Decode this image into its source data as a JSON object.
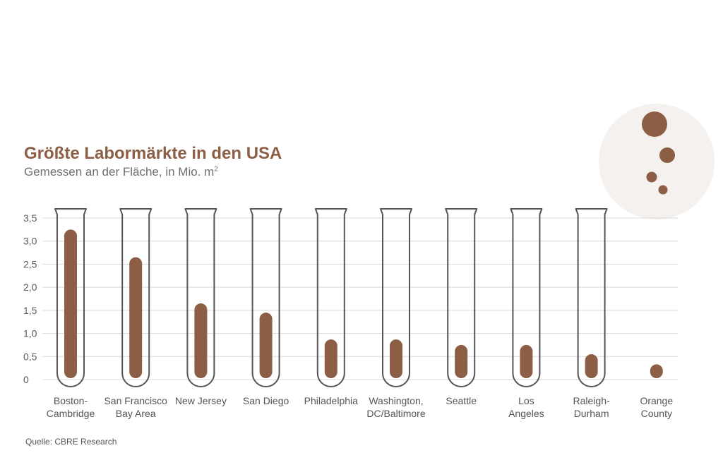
{
  "header": {
    "title": "Größte Labormärkte in den USA",
    "subtitle": "Gemessen an der Fläche, in Mio. m",
    "subtitle_sup": "2"
  },
  "footer": {
    "source": "Quelle: CBRE Research"
  },
  "colors": {
    "accent": "#8b5e45",
    "tube": "#555555",
    "grid": "#d9d9d9",
    "circle": "#f4f1ee"
  },
  "decoration": {
    "icon": "bubbles-icon"
  },
  "chart_data": {
    "type": "bar",
    "title": "Größte Labormärkte in den USA",
    "subtitle": "Gemessen an der Fläche, in Mio. m²",
    "categories": [
      [
        "Boston-",
        "Cambridge"
      ],
      [
        "San Francisco",
        "Bay Area"
      ],
      [
        "New Jersey"
      ],
      [
        "San Diego"
      ],
      [
        "Philadelphia"
      ],
      [
        "Washington,",
        "DC/Baltimore"
      ],
      [
        "Seattle"
      ],
      [
        "Los",
        "Angeles"
      ],
      [
        "Raleigh-",
        "Durham"
      ],
      [
        "Orange",
        "County"
      ]
    ],
    "values": [
      3.25,
      2.65,
      1.65,
      1.45,
      0.87,
      0.87,
      0.75,
      0.75,
      0.55,
      0.33
    ],
    "ylim": [
      0,
      3.5
    ],
    "yticks": [
      "0",
      "0,5",
      "1,0",
      "1,5",
      "2,0",
      "2,5",
      "3,0",
      "3,5"
    ],
    "grid": true,
    "legend": "none"
  }
}
